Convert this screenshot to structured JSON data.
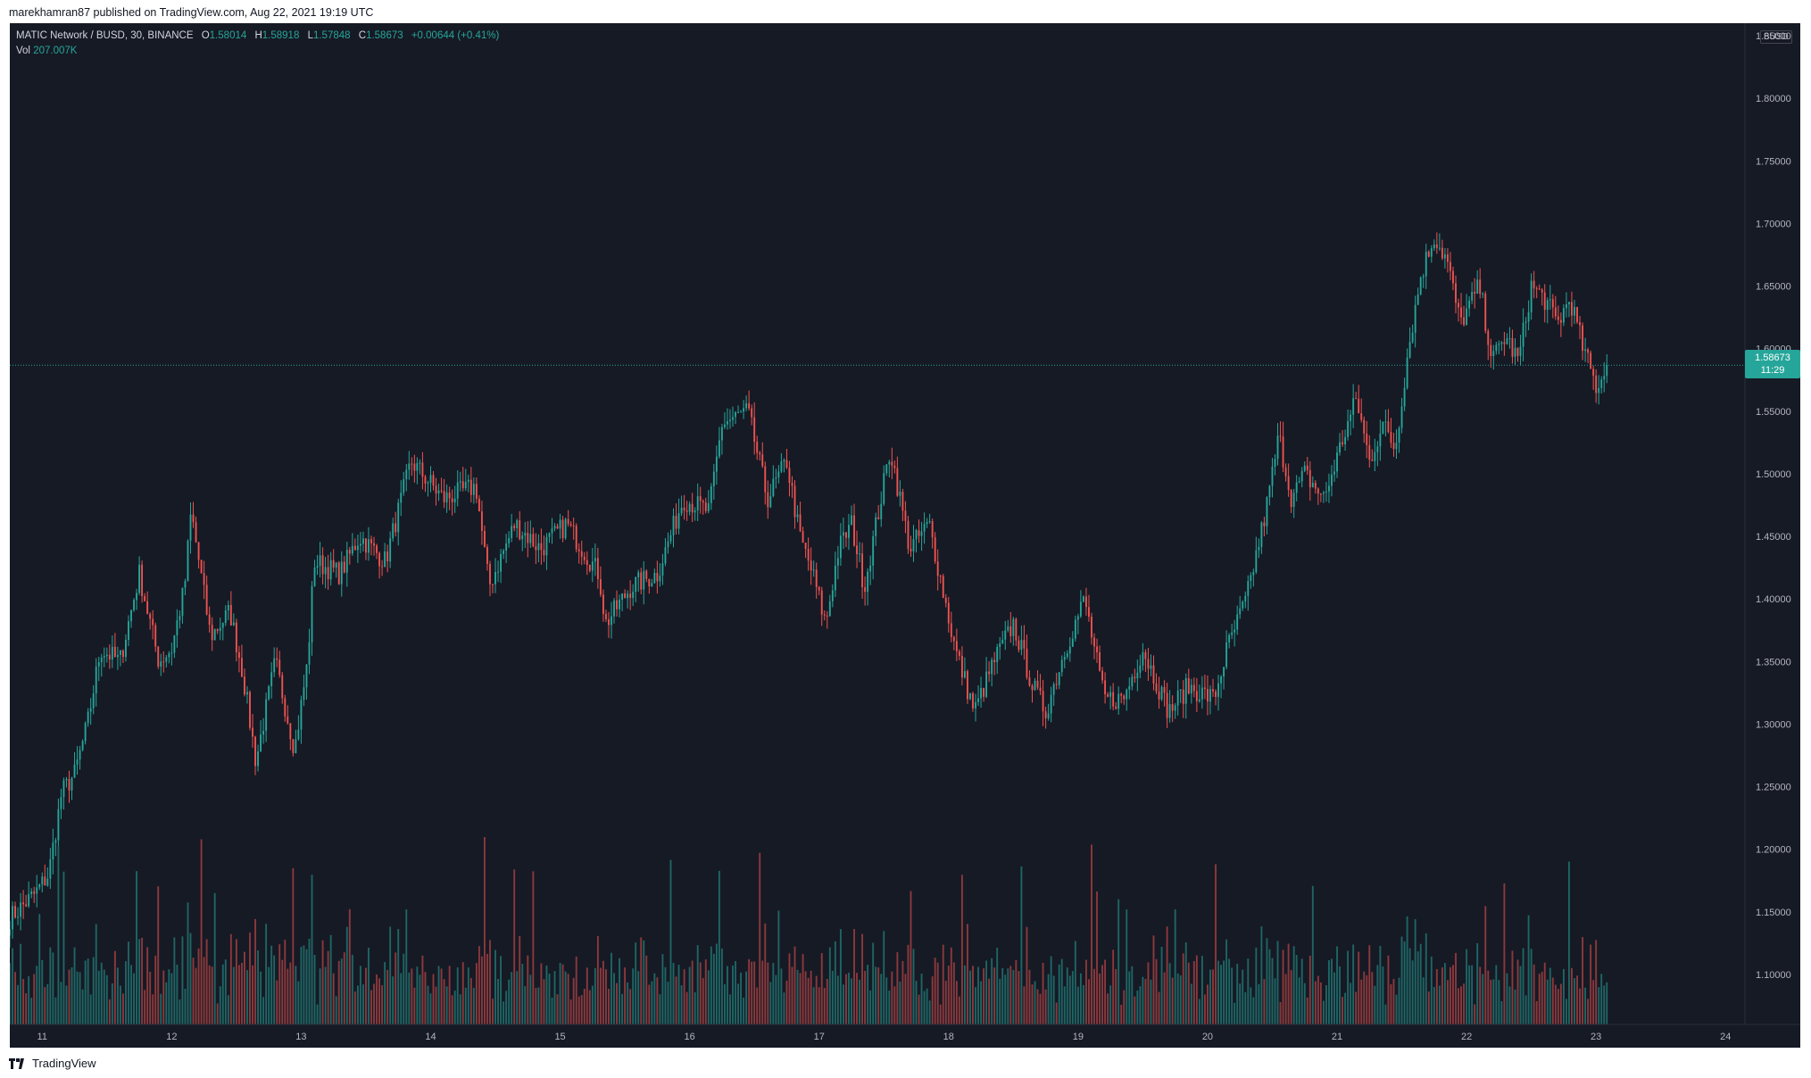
{
  "publisher_line": "marekhamran87 published on TradingView.com, Aug 22, 2021 19:19 UTC",
  "footer_brand": "TradingView",
  "legend": {
    "symbol": "MATIC Network / BUSD, 30, BINANCE",
    "open_label": "O",
    "open": "1.58014",
    "high_label": "H",
    "high": "1.58918",
    "low_label": "L",
    "low": "1.57848",
    "close_label": "C",
    "close": "1.58673",
    "change": "+0.00644 (+0.41%)",
    "vol_label": "Vol",
    "vol": "207.007K"
  },
  "currency": "BUSD",
  "last_price": {
    "value": "1.58673",
    "countdown": "11:29"
  },
  "colors": {
    "background": "#161a25",
    "up": "#26a69a",
    "down": "#ef5350",
    "text": "#b2b5be"
  },
  "chart_data": {
    "type": "candlestick",
    "symbol": "MATIC Network / BUSD",
    "interval": "30",
    "exchange": "BINANCE",
    "ylim": [
      1.06,
      1.86
    ],
    "y_ticks": [
      "1.85000",
      "1.80000",
      "1.75000",
      "1.70000",
      "1.65000",
      "1.60000",
      "1.55000",
      "1.50000",
      "1.45000",
      "1.40000",
      "1.35000",
      "1.30000",
      "1.25000",
      "1.20000",
      "1.15000",
      "1.10000"
    ],
    "x_ticks": [
      "11",
      "12",
      "13",
      "14",
      "15",
      "16",
      "17",
      "18",
      "19",
      "20",
      "21",
      "22",
      "23",
      "24"
    ],
    "x_tick_days": [
      11,
      12,
      13,
      14,
      15,
      16,
      17,
      18,
      19,
      20,
      21,
      22,
      23,
      24
    ],
    "x_range_days": [
      10.75,
      24.15
    ],
    "last_price": 1.58673,
    "close_path": [
      {
        "day": 10.75,
        "price": 1.145
      },
      {
        "day": 10.95,
        "price": 1.165
      },
      {
        "day": 11.05,
        "price": 1.18
      },
      {
        "day": 11.15,
        "price": 1.245
      },
      {
        "day": 11.25,
        "price": 1.26
      },
      {
        "day": 11.35,
        "price": 1.3
      },
      {
        "day": 11.45,
        "price": 1.36
      },
      {
        "day": 11.6,
        "price": 1.35
      },
      {
        "day": 11.75,
        "price": 1.42
      },
      {
        "day": 11.9,
        "price": 1.35
      },
      {
        "day": 12.0,
        "price": 1.36
      },
      {
        "day": 12.1,
        "price": 1.41
      },
      {
        "day": 12.15,
        "price": 1.47
      },
      {
        "day": 12.3,
        "price": 1.37
      },
      {
        "day": 12.45,
        "price": 1.39
      },
      {
        "day": 12.55,
        "price": 1.34
      },
      {
        "day": 12.65,
        "price": 1.27
      },
      {
        "day": 12.8,
        "price": 1.35
      },
      {
        "day": 12.95,
        "price": 1.28
      },
      {
        "day": 13.05,
        "price": 1.35
      },
      {
        "day": 13.1,
        "price": 1.43
      },
      {
        "day": 13.3,
        "price": 1.42
      },
      {
        "day": 13.45,
        "price": 1.45
      },
      {
        "day": 13.65,
        "price": 1.43
      },
      {
        "day": 13.85,
        "price": 1.51
      },
      {
        "day": 14.1,
        "price": 1.48
      },
      {
        "day": 14.35,
        "price": 1.49
      },
      {
        "day": 14.45,
        "price": 1.41
      },
      {
        "day": 14.65,
        "price": 1.46
      },
      {
        "day": 14.85,
        "price": 1.44
      },
      {
        "day": 15.05,
        "price": 1.46
      },
      {
        "day": 15.3,
        "price": 1.42
      },
      {
        "day": 15.35,
        "price": 1.38
      },
      {
        "day": 15.55,
        "price": 1.41
      },
      {
        "day": 15.75,
        "price": 1.42
      },
      {
        "day": 15.95,
        "price": 1.48
      },
      {
        "day": 16.15,
        "price": 1.47
      },
      {
        "day": 16.25,
        "price": 1.54
      },
      {
        "day": 16.45,
        "price": 1.55
      },
      {
        "day": 16.6,
        "price": 1.48
      },
      {
        "day": 16.75,
        "price": 1.51
      },
      {
        "day": 16.85,
        "price": 1.45
      },
      {
        "day": 16.95,
        "price": 1.42
      },
      {
        "day": 17.05,
        "price": 1.38
      },
      {
        "day": 17.15,
        "price": 1.44
      },
      {
        "day": 17.25,
        "price": 1.46
      },
      {
        "day": 17.35,
        "price": 1.41
      },
      {
        "day": 17.55,
        "price": 1.52
      },
      {
        "day": 17.7,
        "price": 1.44
      },
      {
        "day": 17.85,
        "price": 1.46
      },
      {
        "day": 17.95,
        "price": 1.41
      },
      {
        "day": 18.05,
        "price": 1.36
      },
      {
        "day": 18.2,
        "price": 1.31
      },
      {
        "day": 18.35,
        "price": 1.35
      },
      {
        "day": 18.5,
        "price": 1.38
      },
      {
        "day": 18.65,
        "price": 1.33
      },
      {
        "day": 18.75,
        "price": 1.31
      },
      {
        "day": 18.9,
        "price": 1.36
      },
      {
        "day": 19.05,
        "price": 1.4
      },
      {
        "day": 19.2,
        "price": 1.32
      },
      {
        "day": 19.35,
        "price": 1.32
      },
      {
        "day": 19.5,
        "price": 1.36
      },
      {
        "day": 19.7,
        "price": 1.31
      },
      {
        "day": 19.85,
        "price": 1.33
      },
      {
        "day": 20.05,
        "price": 1.32
      },
      {
        "day": 20.15,
        "price": 1.36
      },
      {
        "day": 20.3,
        "price": 1.4
      },
      {
        "day": 20.45,
        "price": 1.47
      },
      {
        "day": 20.55,
        "price": 1.53
      },
      {
        "day": 20.65,
        "price": 1.48
      },
      {
        "day": 20.75,
        "price": 1.5
      },
      {
        "day": 20.9,
        "price": 1.48
      },
      {
        "day": 21.05,
        "price": 1.53
      },
      {
        "day": 21.15,
        "price": 1.56
      },
      {
        "day": 21.25,
        "price": 1.51
      },
      {
        "day": 21.35,
        "price": 1.54
      },
      {
        "day": 21.45,
        "price": 1.52
      },
      {
        "day": 21.55,
        "price": 1.6
      },
      {
        "day": 21.65,
        "price": 1.66
      },
      {
        "day": 21.75,
        "price": 1.69
      },
      {
        "day": 21.85,
        "price": 1.67
      },
      {
        "day": 21.95,
        "price": 1.62
      },
      {
        "day": 22.1,
        "price": 1.65
      },
      {
        "day": 22.2,
        "price": 1.59
      },
      {
        "day": 22.3,
        "price": 1.61
      },
      {
        "day": 22.4,
        "price": 1.59
      },
      {
        "day": 22.5,
        "price": 1.65
      },
      {
        "day": 22.6,
        "price": 1.64
      },
      {
        "day": 22.7,
        "price": 1.62
      },
      {
        "day": 22.8,
        "price": 1.64
      },
      {
        "day": 22.9,
        "price": 1.6
      },
      {
        "day": 23.0,
        "price": 1.57
      },
      {
        "day": 23.1,
        "price": 1.585
      }
    ]
  }
}
